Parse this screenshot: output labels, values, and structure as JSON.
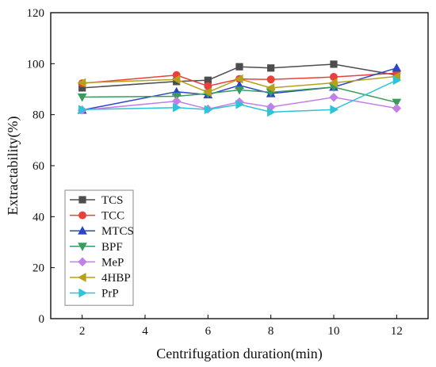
{
  "chart_data": {
    "type": "line",
    "title": "",
    "xlabel": "Centrifugation duration(min)",
    "ylabel": "Extractability(%)",
    "x": [
      2,
      5,
      6,
      7,
      8,
      10,
      12
    ],
    "xlim": [
      1,
      13
    ],
    "ylim": [
      0,
      120
    ],
    "xticks": [
      2,
      4,
      6,
      8,
      10,
      12
    ],
    "yticks": [
      0,
      20,
      40,
      60,
      80,
      100,
      120
    ],
    "grid": false,
    "legend_position": "bottom-left",
    "series": [
      {
        "name": "TCS",
        "color": "#4d4d4d",
        "marker": "square",
        "values": [
          90.5,
          93.0,
          93.5,
          98.8,
          98.3,
          99.8,
          95.5
        ]
      },
      {
        "name": "TCC",
        "color": "#e8413a",
        "marker": "circle",
        "values": [
          92.3,
          95.5,
          91.2,
          94.0,
          93.8,
          94.8,
          96.3
        ]
      },
      {
        "name": "MTCS",
        "color": "#2b45c8",
        "marker": "triangle-up",
        "values": [
          81.8,
          89.0,
          87.8,
          91.5,
          88.3,
          90.8,
          98.3
        ]
      },
      {
        "name": "BPF",
        "color": "#3b9b5c",
        "marker": "triangle-down",
        "values": [
          86.9,
          87.2,
          88.3,
          89.7,
          88.8,
          90.8,
          84.8
        ]
      },
      {
        "name": "MeP",
        "color": "#c27fe6",
        "marker": "diamond",
        "values": [
          81.8,
          85.3,
          82.2,
          85.0,
          83.0,
          86.8,
          82.5
        ]
      },
      {
        "name": "4HBP",
        "color": "#b8a11a",
        "marker": "triangle-left",
        "values": [
          92.5,
          93.8,
          88.8,
          94.0,
          90.5,
          92.5,
          95.0
        ]
      },
      {
        "name": "PrP",
        "color": "#2cc4d6",
        "marker": "triangle-right",
        "values": [
          82.0,
          82.8,
          82.0,
          84.0,
          81.0,
          82.0,
          93.5
        ]
      }
    ]
  }
}
